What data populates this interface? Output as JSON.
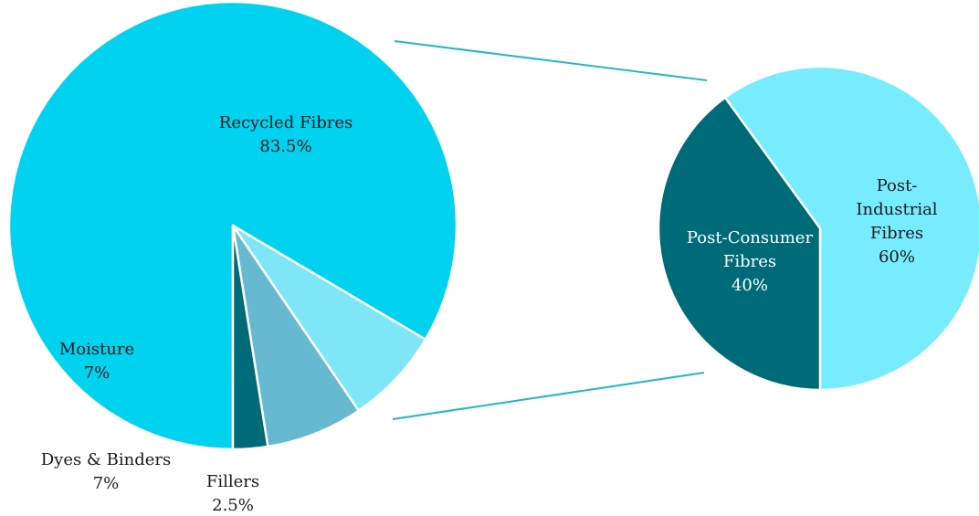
{
  "chart_data": [
    {
      "type": "pie",
      "title": "",
      "colors": [
        "#00d2f0",
        "#7ee6f7",
        "#66b9d0",
        "#006b78"
      ],
      "slices": [
        {
          "label": "Recycled Fibres",
          "value": 83.5,
          "value_label": "83.5%"
        },
        {
          "label": "Moisture",
          "value": 7,
          "value_label": "7%"
        },
        {
          "label": "Dyes & Binders",
          "value": 7,
          "value_label": "7%"
        },
        {
          "label": "Fillers",
          "value": 2.5,
          "value_label": "2.5%"
        }
      ],
      "exploded_slice": "Recycled Fibres"
    },
    {
      "type": "pie",
      "title": "",
      "colors": [
        "#78ecff",
        "#006b78"
      ],
      "slices": [
        {
          "label_lines": [
            "Post-",
            "Industrial",
            "Fibres"
          ],
          "value": 60,
          "value_label": "60%"
        },
        {
          "label_lines": [
            "Post-Consumer",
            "Fibres"
          ],
          "value": 40,
          "value_label": "40%"
        }
      ]
    }
  ],
  "connector_color": "#26b5c4"
}
